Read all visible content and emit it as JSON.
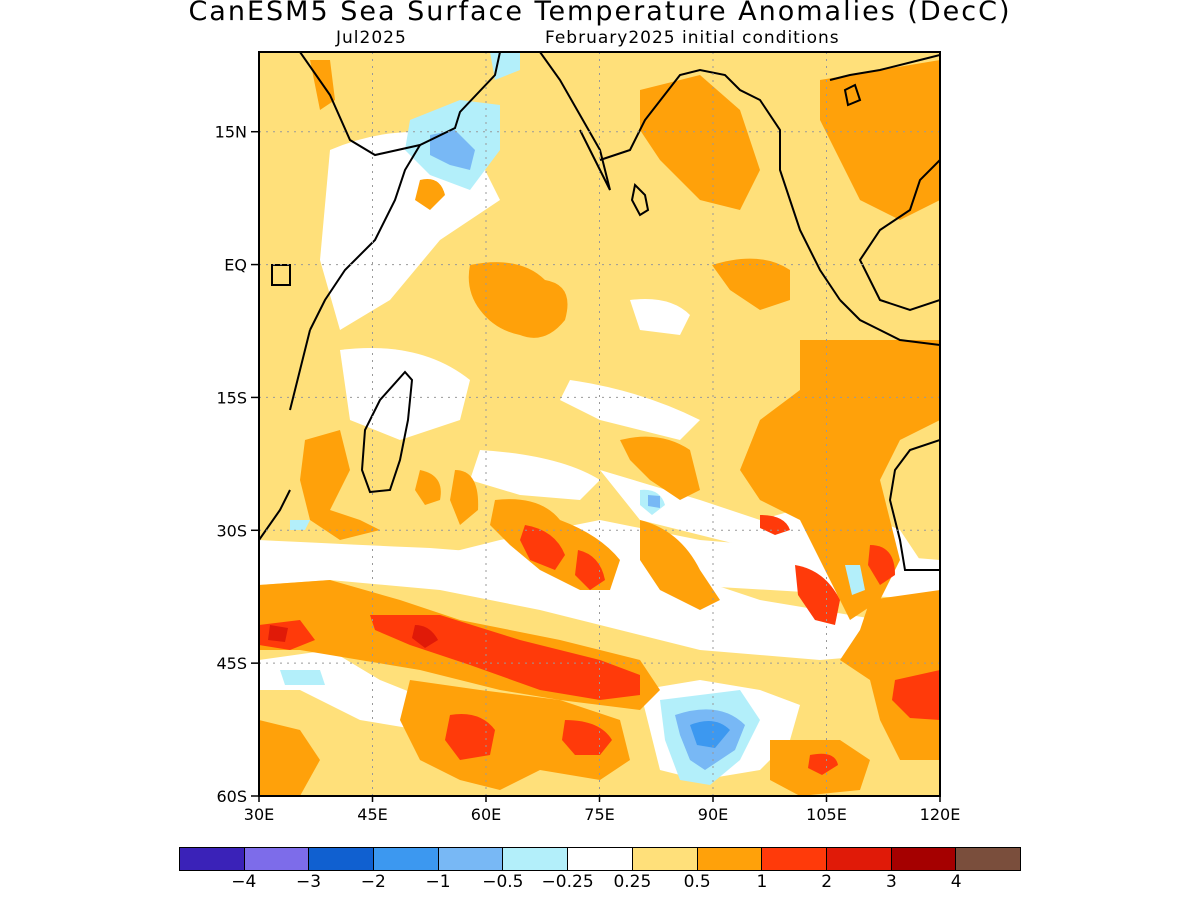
{
  "title": "CanESM5 Sea Surface Temperature Anomalies (DecC)",
  "subtitle_left": "Jul2025",
  "subtitle_right": "February2025 initial conditions",
  "map": {
    "region": "Indian Ocean",
    "lon_range": [
      30,
      120
    ],
    "lat_range": [
      -60,
      24
    ],
    "grid": true,
    "y_ticks": [
      "15N",
      "EQ",
      "15S",
      "30S",
      "45S",
      "60S"
    ],
    "x_ticks": [
      "30E",
      "45E",
      "60E",
      "75E",
      "90E",
      "105E",
      "120E"
    ]
  },
  "colorbar": {
    "colors": [
      "#3a22b8",
      "#7d6cea",
      "#1060d0",
      "#3c98f0",
      "#78b8f5",
      "#b3effa",
      "#ffffff",
      "#ffe07a",
      "#ffa10a",
      "#ff3a0a",
      "#e01a08",
      "#a50000",
      "#7a4e3c"
    ],
    "labels": [
      "−4",
      "−3",
      "−2",
      "−1",
      "−0.5",
      "−0.25",
      "0.25",
      "0.5",
      "1",
      "2",
      "3",
      "4"
    ]
  }
}
